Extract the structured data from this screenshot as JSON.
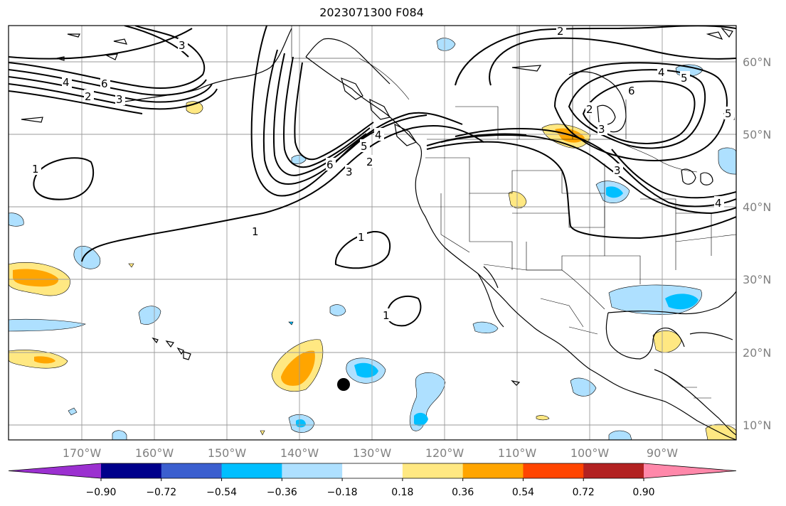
{
  "title": "2023071300 F084",
  "map": {
    "longitude_labels": [
      "170°W",
      "160°W",
      "150°W",
      "140°W",
      "130°W",
      "120°W",
      "110°W",
      "100°W",
      "90°W"
    ],
    "latitude_labels": [
      "60°N",
      "50°N",
      "40°N",
      "30°N",
      "20°N",
      "10°N"
    ],
    "contour_labels": [
      "2",
      "3",
      "4",
      "6",
      "2",
      "3",
      "4",
      "6",
      "5",
      "3",
      "2",
      "4",
      "5",
      "6",
      "2",
      "3",
      "4",
      "5",
      "3",
      "1",
      "1",
      "1",
      "1"
    ],
    "colors": {
      "land_line": "#000000",
      "grid_line": "#9a9a9a",
      "contour_line": "#000000"
    }
  },
  "colorbar": {
    "tick_labels": [
      "−0.90",
      "−0.72",
      "−0.54",
      "−0.36",
      "−0.18",
      "0.18",
      "0.36",
      "0.54",
      "0.72",
      "0.90"
    ],
    "colors": [
      "#9b30d0",
      "#00008b",
      "#3b5fcf",
      "#00bfff",
      "#aee0ff",
      "#ffffff",
      "#ffe882",
      "#ffa500",
      "#ff4500",
      "#b22222",
      "#ff88aa"
    ]
  }
}
